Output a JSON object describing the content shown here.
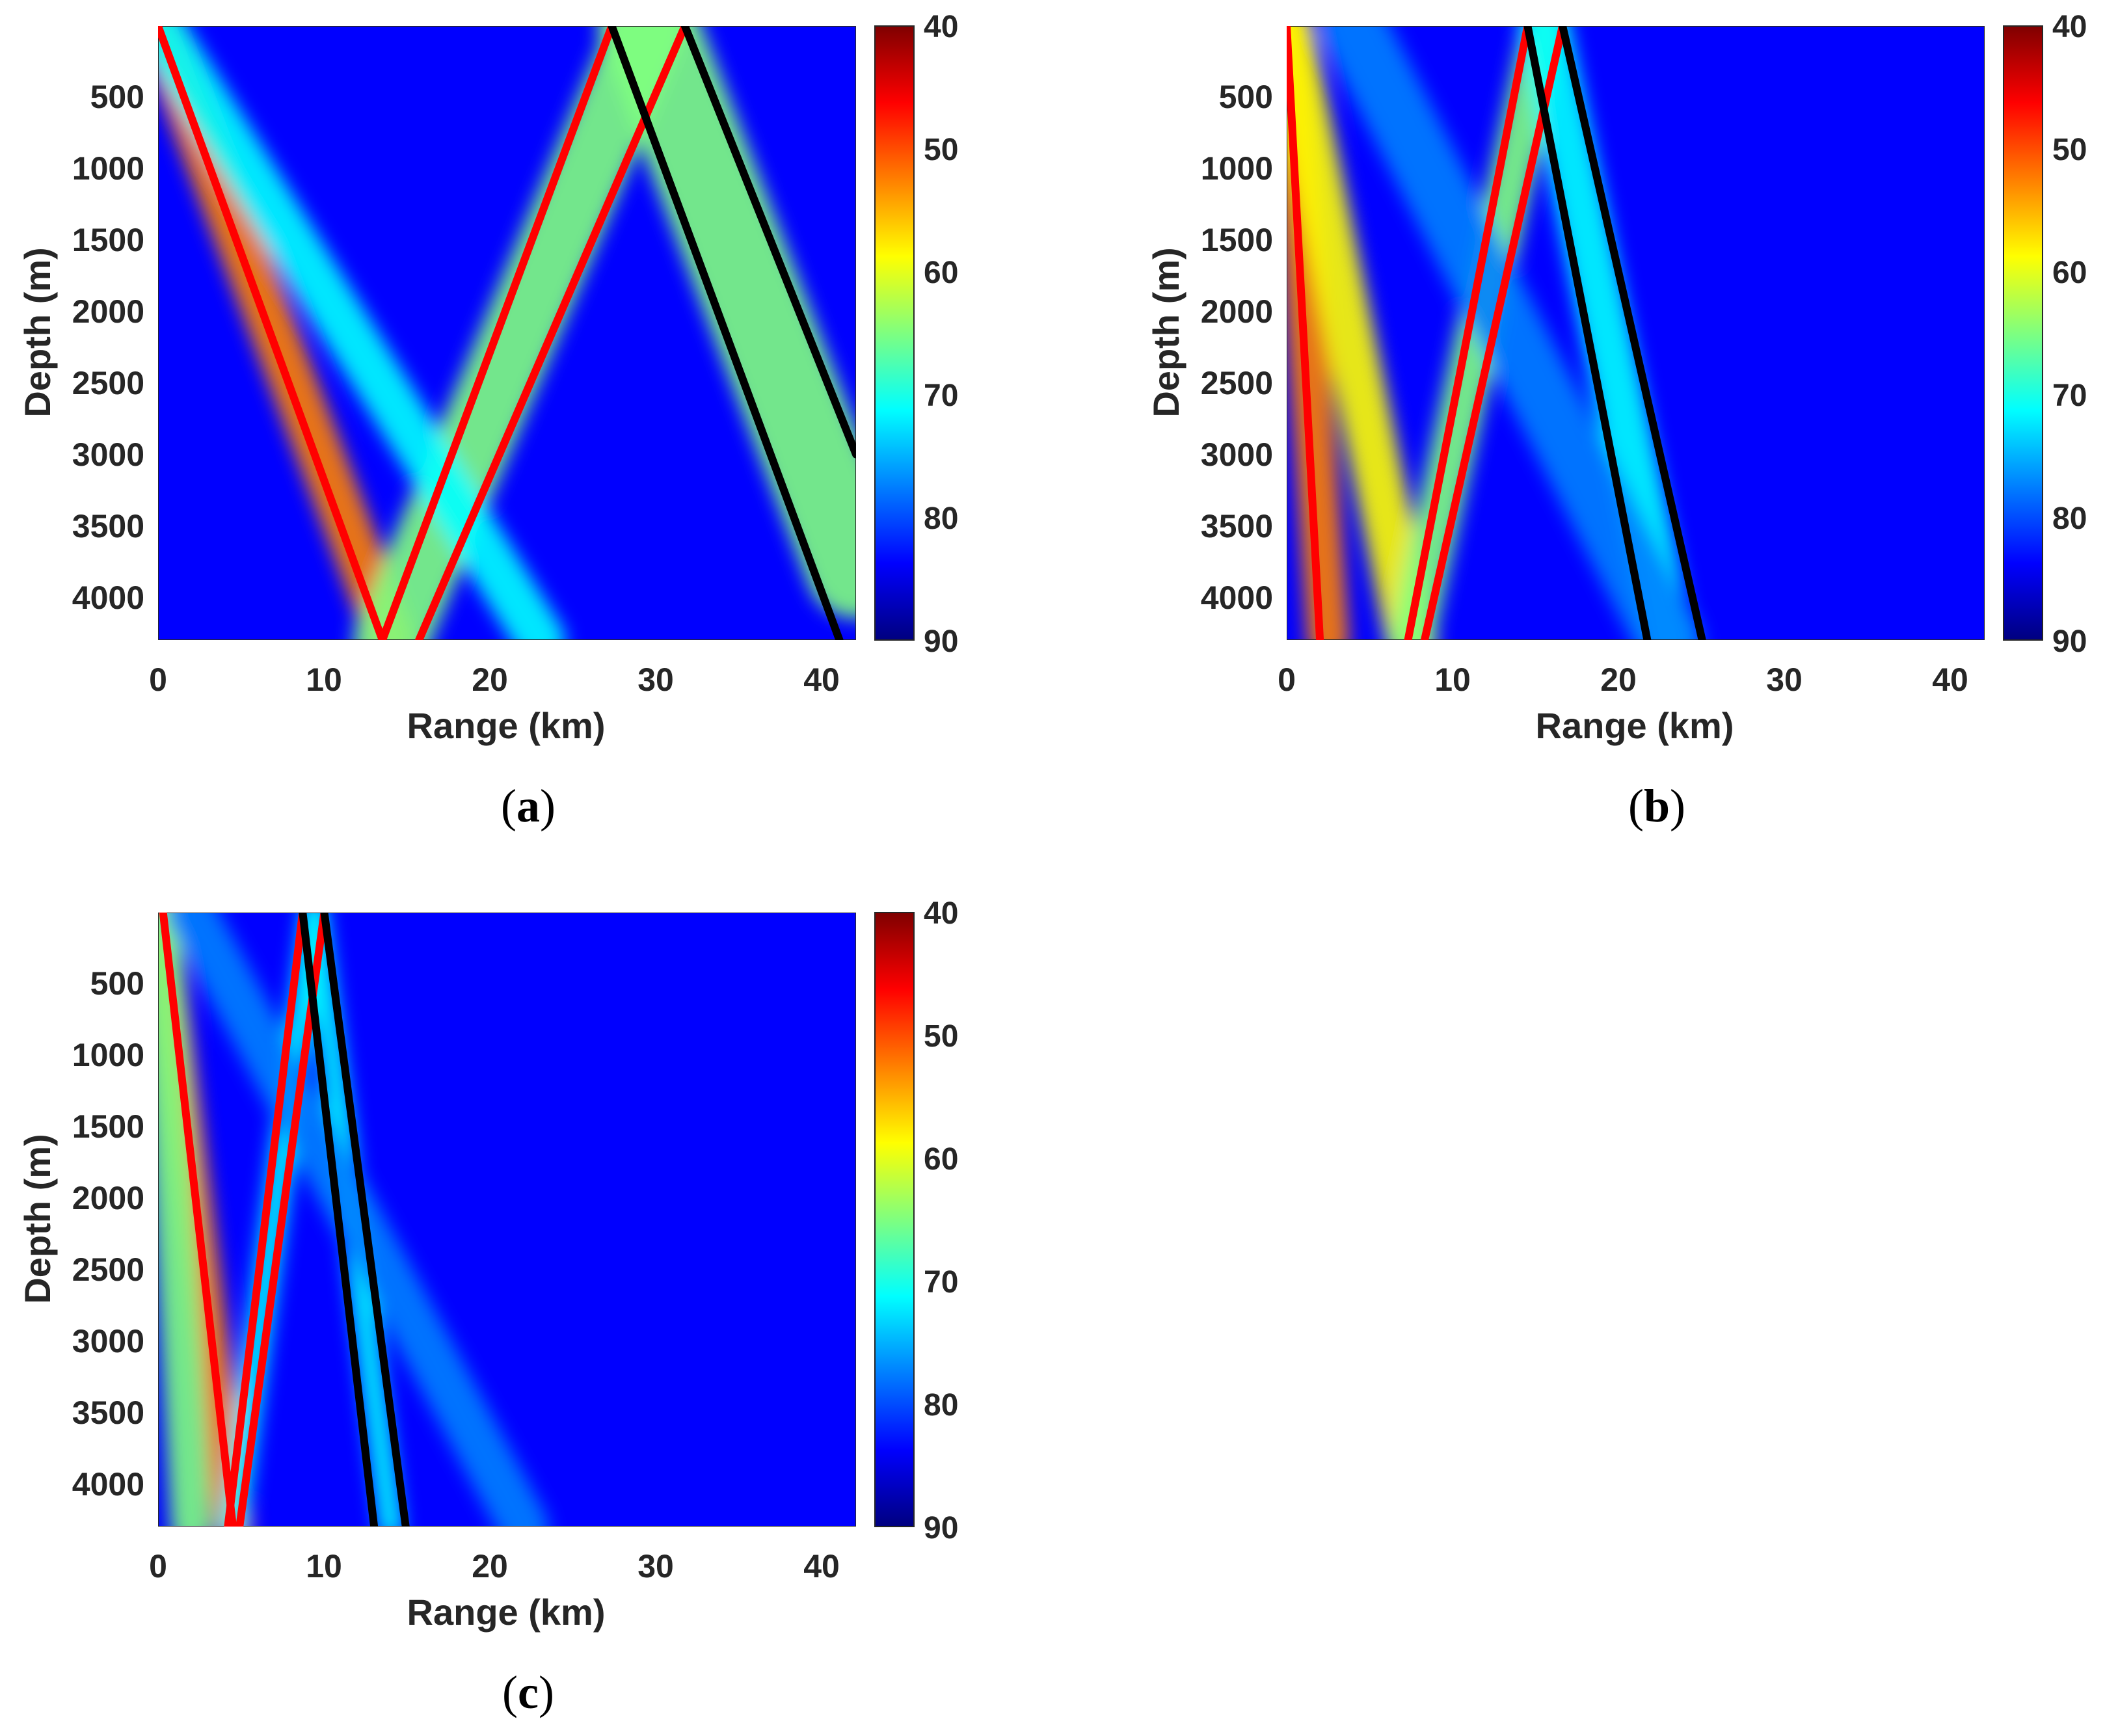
{
  "figure": {
    "colormap": [
      "#00007f",
      "#0000ff",
      "#007fff",
      "#00ffff",
      "#7fff7f",
      "#ffff00",
      "#ff7f00",
      "#ff0000",
      "#7f0000"
    ]
  },
  "chart_data": [
    {
      "panel": "a",
      "caption_letter": "a",
      "type": "heatmap",
      "xlabel": "Range (km)",
      "ylabel": "Depth (m)",
      "xlim": [
        0,
        42
      ],
      "ylim": [
        0,
        4300
      ],
      "x_ticks": [
        0,
        10,
        20,
        30,
        40
      ],
      "y_ticks": [
        500,
        1000,
        1500,
        2000,
        2500,
        3000,
        3500,
        4000
      ],
      "colorbar": {
        "ticks": [
          40,
          50,
          60,
          70,
          80,
          90
        ],
        "range": [
          40,
          90
        ],
        "reversed": true
      },
      "background_level": 85,
      "beams": [
        {
          "pts": [
            [
              0,
              0
            ],
            [
              14,
              4300
            ]
          ],
          "level": 52,
          "width_km": 2.8
        },
        {
          "pts": [
            [
              14,
              4300
            ],
            [
              29.5,
              0
            ]
          ],
          "level": 62,
          "width_km": 4.5
        },
        {
          "pts": [
            [
              29.5,
              0
            ],
            [
              42,
              3800
            ]
          ],
          "level": 68,
          "width_km": 6
        },
        {
          "pts": [
            [
              0,
              0
            ],
            [
              23,
              4300
            ]
          ],
          "level": 72,
          "width_km": 3
        }
      ],
      "series": [
        {
          "color": "#ff0000",
          "points": [
            [
              0,
              0
            ],
            [
              13.5,
              4300
            ]
          ]
        },
        {
          "color": "#ff0000",
          "points": [
            [
              13.5,
              4300
            ],
            [
              27.3,
              0
            ]
          ]
        },
        {
          "color": "#ff0000",
          "points": [
            [
              15.7,
              4300
            ],
            [
              31.7,
              0
            ]
          ]
        },
        {
          "color": "#000000",
          "points": [
            [
              27.3,
              0
            ],
            [
              41,
              4300
            ]
          ]
        },
        {
          "color": "#000000",
          "points": [
            [
              31.7,
              0
            ],
            [
              42,
              3000
            ]
          ]
        }
      ]
    },
    {
      "panel": "b",
      "caption_letter": "b",
      "type": "heatmap",
      "xlabel": "Range (km)",
      "ylabel": "Depth (m)",
      "xlim": [
        0,
        42
      ],
      "ylim": [
        0,
        4300
      ],
      "x_ticks": [
        0,
        10,
        20,
        30,
        40
      ],
      "y_ticks": [
        500,
        1000,
        1500,
        2000,
        2500,
        3000,
        3500,
        4000
      ],
      "colorbar": {
        "ticks": [
          40,
          50,
          60,
          70,
          80,
          90
        ],
        "range": [
          40,
          90
        ],
        "reversed": true
      },
      "background_level": 82,
      "beams": [
        {
          "pts": [
            [
              0,
              0
            ],
            [
              2.5,
              4300
            ]
          ],
          "level": 50,
          "width_km": 2.5
        },
        {
          "pts": [
            [
              0,
              0
            ],
            [
              7.5,
              4300
            ]
          ],
          "level": 58,
          "width_km": 3
        },
        {
          "pts": [
            [
              7.5,
              4300
            ],
            [
              15.5,
              0
            ]
          ],
          "level": 68,
          "width_km": 2.6
        },
        {
          "pts": [
            [
              15.5,
              0
            ],
            [
              23,
              4300
            ]
          ],
          "level": 72,
          "width_km": 3
        },
        {
          "pts": [
            [
              4,
              0
            ],
            [
              23,
              4300
            ]
          ],
          "level": 77,
          "width_km": 4
        }
      ],
      "series": [
        {
          "color": "#ff0000",
          "points": [
            [
              0,
              0
            ],
            [
              2,
              4300
            ]
          ]
        },
        {
          "color": "#ff0000",
          "points": [
            [
              7.3,
              4300
            ],
            [
              14.5,
              0
            ]
          ]
        },
        {
          "color": "#ff0000",
          "points": [
            [
              8.3,
              4300
            ],
            [
              16.6,
              0
            ]
          ]
        },
        {
          "color": "#000000",
          "points": [
            [
              14.5,
              0
            ],
            [
              21.7,
              4300
            ]
          ]
        },
        {
          "color": "#000000",
          "points": [
            [
              16.6,
              0
            ],
            [
              25,
              4300
            ]
          ]
        }
      ]
    },
    {
      "panel": "c",
      "caption_letter": "c",
      "type": "heatmap",
      "xlabel": "Range (km)",
      "ylabel": "Depth (m)",
      "xlim": [
        0,
        42
      ],
      "ylim": [
        0,
        4300
      ],
      "x_ticks": [
        0,
        10,
        20,
        30,
        40
      ],
      "y_ticks": [
        500,
        1000,
        1500,
        2000,
        2500,
        3000,
        3500,
        4000
      ],
      "colorbar": {
        "ticks": [
          40,
          50,
          60,
          70,
          80,
          90
        ],
        "range": [
          40,
          90
        ],
        "reversed": true
      },
      "background_level": 82,
      "beams": [
        {
          "pts": [
            [
              0,
              0
            ],
            [
              4.5,
              4300
            ]
          ],
          "level": 55,
          "width_km": 2.2
        },
        {
          "pts": [
            [
              0,
              0
            ],
            [
              2,
              4300
            ]
          ],
          "level": 66,
          "width_km": 2.5
        },
        {
          "pts": [
            [
              4.5,
              4300
            ],
            [
              9.4,
              0
            ]
          ],
          "level": 70,
          "width_km": 1.5
        },
        {
          "pts": [
            [
              9.4,
              0
            ],
            [
              14,
              4300
            ]
          ],
          "level": 74,
          "width_km": 1.5
        },
        {
          "pts": [
            [
              2,
              0
            ],
            [
              22,
              4300
            ]
          ],
          "level": 78,
          "width_km": 3
        }
      ],
      "series": [
        {
          "color": "#ff0000",
          "points": [
            [
              0.3,
              0
            ],
            [
              4.5,
              4300
            ]
          ]
        },
        {
          "color": "#ff0000",
          "points": [
            [
              4.2,
              4300
            ],
            [
              8.7,
              0
            ]
          ]
        },
        {
          "color": "#ff0000",
          "points": [
            [
              4.9,
              4300
            ],
            [
              10,
              0
            ]
          ]
        },
        {
          "color": "#000000",
          "points": [
            [
              8.7,
              0
            ],
            [
              13,
              4300
            ]
          ]
        },
        {
          "color": "#000000",
          "points": [
            [
              10,
              0
            ],
            [
              14.9,
              4300
            ]
          ]
        }
      ]
    }
  ]
}
